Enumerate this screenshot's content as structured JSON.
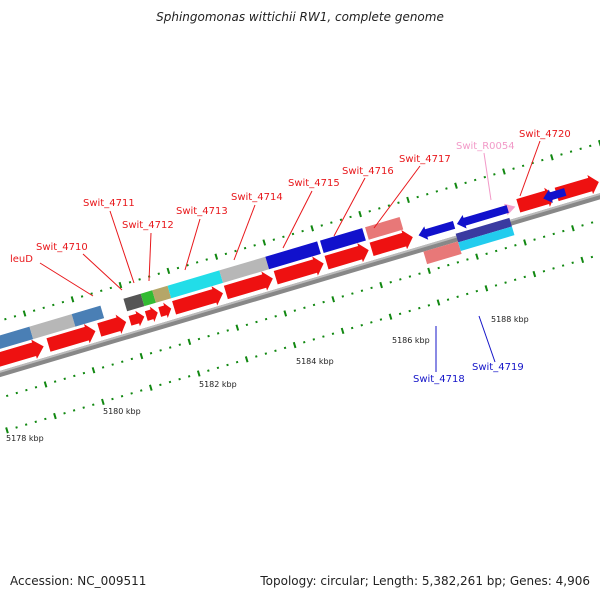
{
  "title": "Sphingomonas wittichii RW1, complete genome",
  "accession_text": "Accession: NC_009511",
  "summary_text": "Topology: circular; Length: 5,382,261 bp; Genes: 4,906",
  "colors": {
    "forward_label": "#e8171b",
    "reverse_label": "#1414c8",
    "rna_label": "#f29ac8",
    "cds_forward": "#ee1111",
    "cds_reverse": "#1010dd",
    "backbone": "#808080",
    "tick": "#118811"
  },
  "position_labels": [
    "5178 kbp",
    "5180 kbp",
    "5182 kbp",
    "5184 kbp",
    "5186 kbp",
    "5188 kbp"
  ],
  "gene_labels": [
    {
      "text": "leuD",
      "strand": "forward"
    },
    {
      "text": "Swit_4710",
      "strand": "forward"
    },
    {
      "text": "Swit_4711",
      "strand": "forward"
    },
    {
      "text": "Swit_4712",
      "strand": "forward"
    },
    {
      "text": "Swit_4713",
      "strand": "forward"
    },
    {
      "text": "Swit_4714",
      "strand": "forward"
    },
    {
      "text": "Swit_4715",
      "strand": "forward"
    },
    {
      "text": "Swit_4716",
      "strand": "forward"
    },
    {
      "text": "Swit_4717",
      "strand": "forward"
    },
    {
      "text": "Swit_R0054",
      "strand": "rna"
    },
    {
      "text": "Swit_4720",
      "strand": "forward"
    },
    {
      "text": "Swit_4718",
      "strand": "reverse"
    },
    {
      "text": "Swit_4719",
      "strand": "reverse"
    }
  ]
}
